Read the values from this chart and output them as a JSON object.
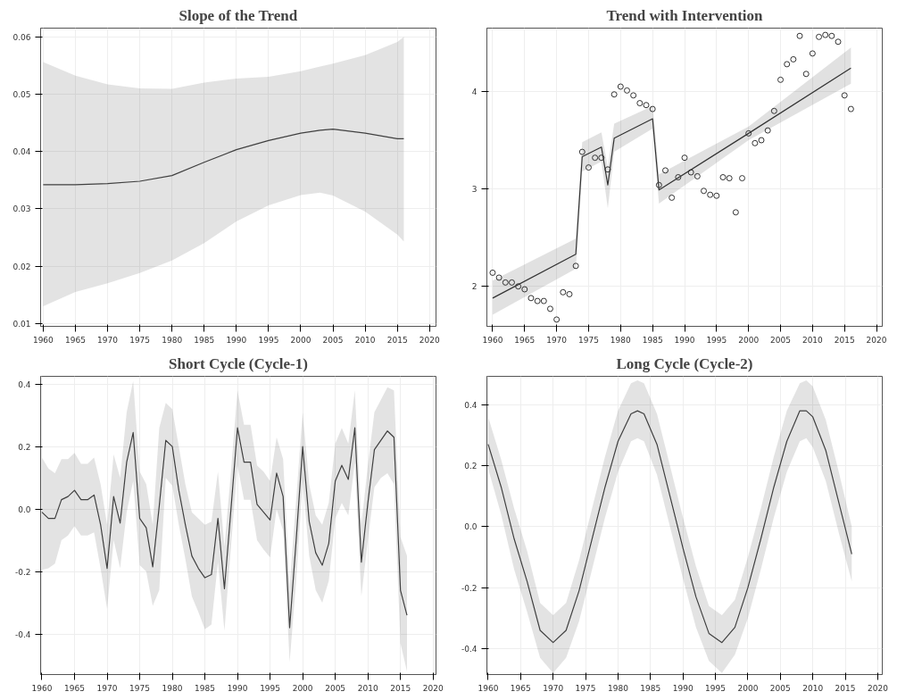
{
  "chart_data": [
    {
      "type": "line",
      "title": "Slope of the Trend",
      "xlim": [
        1959.6,
        2021
      ],
      "ylim": [
        0.0095,
        0.0615
      ],
      "xticks": [
        1960,
        1965,
        1970,
        1975,
        1980,
        1985,
        1990,
        1995,
        2000,
        2005,
        2010,
        2015,
        2020
      ],
      "yticks": [
        0.01,
        0.02,
        0.03,
        0.04,
        0.05,
        0.06
      ],
      "grid": true,
      "series": [
        {
          "color": "#404040",
          "x": [
            1960,
            1965,
            1970,
            1975,
            1980,
            1985,
            1990,
            1995,
            2000,
            2003,
            2005,
            2010,
            2015,
            2016
          ],
          "values": [
            0.0342,
            0.0342,
            0.0344,
            0.0348,
            0.0358,
            0.0381,
            0.0403,
            0.0419,
            0.0432,
            0.0437,
            0.0439,
            0.0432,
            0.0422,
            0.0422
          ],
          "upper": [
            0.0556,
            0.0532,
            0.0517,
            0.051,
            0.0509,
            0.052,
            0.0527,
            0.053,
            0.054,
            0.0548,
            0.0553,
            0.0568,
            0.0591,
            0.06
          ],
          "lower": [
            0.013,
            0.0155,
            0.017,
            0.0188,
            0.021,
            0.024,
            0.0278,
            0.0306,
            0.0324,
            0.0328,
            0.0323,
            0.0295,
            0.0255,
            0.0243
          ]
        }
      ]
    },
    {
      "type": "line",
      "title": "Trend with Intervention",
      "xlim": [
        1959.1,
        2020.9
      ],
      "ylim": [
        1.59,
        4.65
      ],
      "xticks": [
        1960,
        1965,
        1970,
        1975,
        1980,
        1985,
        1990,
        1995,
        2000,
        2005,
        2010,
        2015,
        2020
      ],
      "yticks": [
        2,
        3,
        4
      ],
      "grid": true,
      "series": [
        {
          "type": "scatter",
          "marker": "circle",
          "color": "#333333",
          "x": [
            1960,
            1961,
            1962,
            1963,
            1964,
            1965,
            1966,
            1967,
            1968,
            1969,
            1970,
            1971,
            1972,
            1973,
            1974,
            1975,
            1976,
            1977,
            1978,
            1979,
            1980,
            1981,
            1982,
            1983,
            1984,
            1985,
            1986,
            1987,
            1988,
            1989,
            1990,
            1991,
            1992,
            1993,
            1994,
            1995,
            1996,
            1997,
            1998,
            1999,
            2000,
            2001,
            2002,
            2003,
            2004,
            2005,
            2006,
            2007,
            2008,
            2009,
            2010,
            2011,
            2012,
            2013,
            2014,
            2015,
            2016
          ],
          "values": [
            2.14,
            2.09,
            2.04,
            2.04,
            2.0,
            1.97,
            1.88,
            1.85,
            1.85,
            1.77,
            1.66,
            1.94,
            1.92,
            2.21,
            3.38,
            3.22,
            3.32,
            3.32,
            3.2,
            3.97,
            4.05,
            4.01,
            3.96,
            3.88,
            3.86,
            3.82,
            3.04,
            3.19,
            2.91,
            3.12,
            3.32,
            3.17,
            3.13,
            2.98,
            2.94,
            2.93,
            3.12,
            3.11,
            2.76,
            3.11,
            3.57,
            3.47,
            3.5,
            3.6,
            3.8,
            4.12,
            4.28,
            4.33,
            4.57,
            4.18,
            4.39,
            4.56,
            4.58,
            4.57,
            4.51,
            3.96,
            3.82
          ]
        },
        {
          "type": "line",
          "color": "#333333",
          "x": [
            1960,
            1973,
            1974,
            1977,
            1978,
            1979,
            1985,
            1986,
            2000,
            2016
          ],
          "values": [
            1.88,
            2.33,
            3.33,
            3.43,
            3.04,
            3.52,
            3.72,
            2.99,
            3.57,
            4.24
          ],
          "upper": [
            2.06,
            2.49,
            3.48,
            3.58,
            3.22,
            3.67,
            3.85,
            3.15,
            3.64,
            4.45
          ],
          "lower": [
            1.71,
            2.18,
            3.18,
            3.28,
            2.8,
            3.38,
            3.62,
            2.85,
            3.5,
            4.08
          ]
        }
      ]
    },
    {
      "type": "line",
      "title": "Short Cycle (Cycle-1)",
      "xlim": [
        1959.8,
        2020.45
      ],
      "ylim": [
        -0.53,
        0.425
      ],
      "xticks": [
        1960,
        1965,
        1970,
        1975,
        1980,
        1985,
        1990,
        1995,
        2000,
        2005,
        2010,
        2015,
        2020
      ],
      "yticks": [
        {
          "value": -0.4,
          "label": "-0.4"
        },
        {
          "value": -0.2,
          "label": "-0.2"
        },
        {
          "value": 0,
          "label": "0.0"
        },
        {
          "value": 0.2,
          "label": "0.2"
        },
        {
          "value": 0.4,
          "label": "0.4"
        }
      ],
      "grid": true,
      "series": [
        {
          "color": "#404040",
          "x": [
            1960,
            1961,
            1962,
            1963,
            1964,
            1965,
            1966,
            1967,
            1968,
            1969,
            1970,
            1971,
            1972,
            1973,
            1974,
            1975,
            1976,
            1977,
            1978,
            1979,
            1980,
            1981,
            1982,
            1983,
            1984,
            1985,
            1986,
            1987,
            1988,
            1989,
            1990,
            1991,
            1992,
            1993,
            1994,
            1995,
            1996,
            1997,
            1998,
            1999,
            2000,
            2001,
            2002,
            2003,
            2004,
            2005,
            2006,
            2007,
            2008,
            2009,
            2010,
            2011,
            2012,
            2013,
            2014,
            2015,
            2016
          ],
          "values": [
            -0.01,
            -0.03,
            -0.03,
            0.03,
            0.04,
            0.06,
            0.03,
            0.03,
            0.045,
            -0.05,
            -0.19,
            0.04,
            -0.045,
            0.15,
            0.245,
            -0.03,
            -0.06,
            -0.185,
            0.01,
            0.22,
            0.2,
            0.06,
            -0.05,
            -0.15,
            -0.19,
            -0.22,
            -0.21,
            -0.03,
            -0.255,
            0.0,
            0.26,
            0.15,
            0.15,
            0.015,
            -0.01,
            -0.035,
            0.115,
            0.04,
            -0.38,
            -0.1,
            0.2,
            -0.04,
            -0.14,
            -0.18,
            -0.11,
            0.09,
            0.14,
            0.095,
            0.26,
            -0.17,
            0.02,
            0.19,
            0.22,
            0.25,
            0.23,
            -0.26,
            -0.34
          ],
          "upper": [
            0.165,
            0.13,
            0.115,
            0.16,
            0.16,
            0.18,
            0.145,
            0.145,
            0.165,
            0.08,
            -0.05,
            0.175,
            0.1,
            0.31,
            0.41,
            0.12,
            0.08,
            -0.05,
            0.26,
            0.34,
            0.32,
            0.2,
            0.08,
            -0.01,
            -0.03,
            -0.05,
            -0.04,
            0.12,
            -0.12,
            0.12,
            0.38,
            0.27,
            0.27,
            0.14,
            0.12,
            0.09,
            0.23,
            0.16,
            -0.25,
            0.03,
            0.31,
            0.08,
            -0.02,
            -0.05,
            0.02,
            0.21,
            0.26,
            0.21,
            0.38,
            -0.05,
            0.14,
            0.31,
            0.35,
            0.39,
            0.38,
            -0.09,
            -0.15
          ],
          "lower": [
            -0.195,
            -0.19,
            -0.175,
            -0.1,
            -0.085,
            -0.055,
            -0.085,
            -0.085,
            -0.075,
            -0.19,
            -0.32,
            -0.1,
            -0.19,
            -0.01,
            0.09,
            -0.18,
            -0.2,
            -0.31,
            -0.26,
            0.1,
            0.075,
            -0.05,
            -0.16,
            -0.28,
            -0.33,
            -0.385,
            -0.37,
            -0.17,
            -0.39,
            -0.12,
            0.14,
            0.03,
            0.03,
            -0.1,
            -0.13,
            -0.155,
            0.0,
            -0.07,
            -0.49,
            -0.23,
            0.09,
            -0.15,
            -0.26,
            -0.3,
            -0.23,
            -0.03,
            0.02,
            -0.02,
            0.15,
            -0.28,
            -0.1,
            0.07,
            0.1,
            0.115,
            0.08,
            -0.43,
            -0.52
          ]
        }
      ]
    },
    {
      "type": "line",
      "title": "Long Cycle (Cycle-2)",
      "xlim": [
        1959.8,
        2020.7
      ],
      "ylim": [
        -0.485,
        0.493
      ],
      "xticks": [
        1960,
        1965,
        1970,
        1975,
        1980,
        1985,
        1990,
        1995,
        2000,
        2005,
        2010,
        2015,
        2020
      ],
      "yticks": [
        {
          "value": -0.4,
          "label": "-0.4"
        },
        {
          "value": -0.2,
          "label": "-0.2"
        },
        {
          "value": 0,
          "label": "0.0"
        },
        {
          "value": 0.2,
          "label": "0.2"
        },
        {
          "value": 0.4,
          "label": "0.4"
        }
      ],
      "grid": true,
      "series": [
        {
          "color": "#404040",
          "x": [
            1960,
            1962,
            1964,
            1966,
            1968,
            1970,
            1972,
            1974,
            1976,
            1978,
            1980,
            1982,
            1983,
            1984,
            1986,
            1988,
            1990,
            1992,
            1994,
            1996,
            1998,
            2000,
            2002,
            2004,
            2006,
            2008,
            2009,
            2010,
            2012,
            2014,
            2016
          ],
          "values": [
            0.27,
            0.13,
            -0.04,
            -0.18,
            -0.34,
            -0.38,
            -0.34,
            -0.21,
            -0.04,
            0.13,
            0.28,
            0.37,
            0.38,
            0.37,
            0.27,
            0.1,
            -0.07,
            -0.23,
            -0.35,
            -0.38,
            -0.33,
            -0.2,
            -0.04,
            0.13,
            0.28,
            0.38,
            0.38,
            0.36,
            0.25,
            0.08,
            -0.09
          ],
          "upper": [
            0.36,
            0.22,
            0.06,
            -0.08,
            -0.25,
            -0.29,
            -0.25,
            -0.11,
            0.06,
            0.23,
            0.38,
            0.47,
            0.48,
            0.47,
            0.37,
            0.2,
            0.03,
            -0.13,
            -0.26,
            -0.29,
            -0.24,
            -0.1,
            0.06,
            0.23,
            0.38,
            0.47,
            0.48,
            0.46,
            0.35,
            0.18,
            0.0
          ],
          "lower": [
            0.19,
            0.04,
            -0.14,
            -0.28,
            -0.43,
            -0.48,
            -0.43,
            -0.31,
            -0.14,
            0.03,
            0.18,
            0.28,
            0.29,
            0.28,
            0.17,
            0.0,
            -0.17,
            -0.33,
            -0.44,
            -0.48,
            -0.42,
            -0.3,
            -0.14,
            0.03,
            0.18,
            0.28,
            0.29,
            0.26,
            0.15,
            -0.02,
            -0.18
          ]
        }
      ]
    }
  ]
}
